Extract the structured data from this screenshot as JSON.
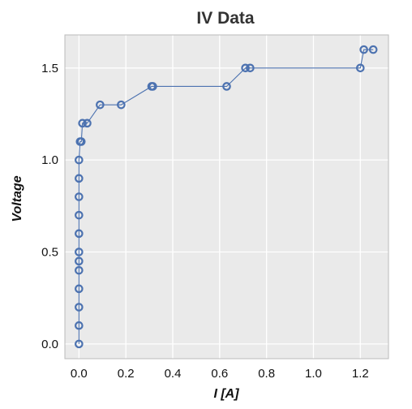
{
  "chart_data": {
    "type": "scatter",
    "title": "IV Data",
    "xlabel": "I [A]",
    "ylabel": "Voltage",
    "xlim": [
      -0.06,
      1.32
    ],
    "ylim": [
      -0.08,
      1.68
    ],
    "x_ticks": [
      0.0,
      0.2,
      0.4,
      0.6,
      0.8,
      1.0,
      1.2
    ],
    "x_tick_labels": [
      "0.0",
      "0.2",
      "0.4",
      "0.6",
      "0.8",
      "1.0",
      "1.2"
    ],
    "y_ticks": [
      0.0,
      0.5,
      1.0,
      1.5
    ],
    "y_tick_labels": [
      "0.0",
      "0.5",
      "1.0",
      "1.5"
    ],
    "grid": true,
    "legend": "none",
    "series": [
      {
        "style": "line-with-open-circle-markers",
        "x": [
          0.0,
          0.0,
          0.0,
          0.0,
          0.0,
          0.0,
          0.0,
          0.0,
          0.0,
          0.0,
          0.0,
          0.0,
          0.005,
          0.01,
          0.015,
          0.035,
          0.09,
          0.18,
          0.31,
          0.315,
          0.63,
          0.71,
          0.73,
          1.2,
          1.215,
          1.255
        ],
        "y": [
          0.0,
          0.1,
          0.2,
          0.3,
          0.4,
          0.45,
          0.5,
          0.6,
          0.7,
          0.8,
          0.9,
          1.0,
          1.1,
          1.1,
          1.2,
          1.2,
          1.3,
          1.3,
          1.4,
          1.4,
          1.4,
          1.5,
          1.5,
          1.5,
          1.6,
          1.6
        ]
      }
    ],
    "colors": {
      "series": "#4c72b0",
      "plot_background": "#eaeaea",
      "grid": "#ffffff",
      "axes_frame": "#bbbbbb",
      "title": "#333333"
    }
  }
}
